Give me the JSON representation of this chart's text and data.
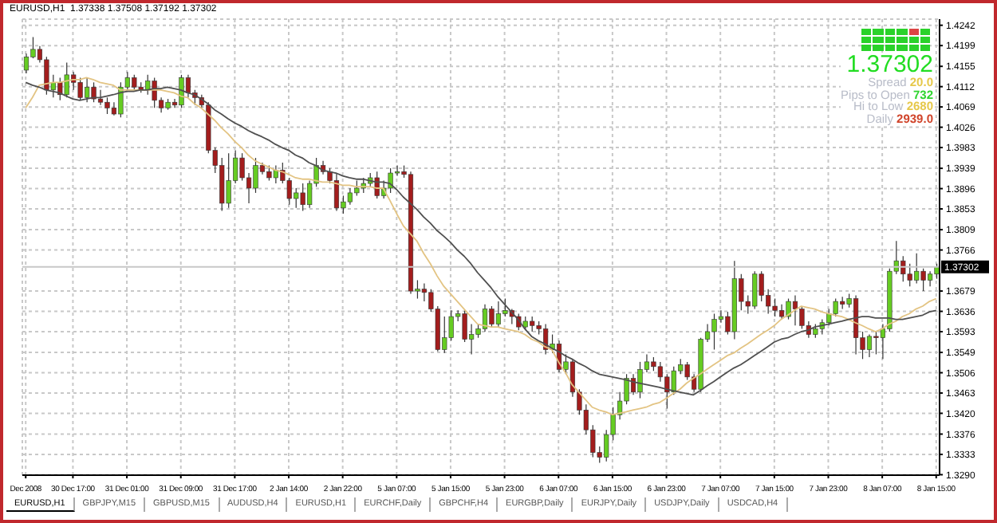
{
  "chart_data": {
    "type": "candlestick",
    "title": "EURUSD,H1  1.37338 1.37508 1.37192 1.37302",
    "categories": [
      "Dec 2008",
      null,
      null,
      null,
      null,
      null,
      null,
      "30 Dec 17:00",
      null,
      null,
      null,
      null,
      null,
      null,
      null,
      "31 Dec 01:00",
      null,
      null,
      null,
      null,
      null,
      null,
      null,
      "31 Dec 09:00",
      null,
      null,
      null,
      null,
      null,
      null,
      null,
      "31 Dec 17:00",
      null,
      null,
      null,
      null,
      null,
      null,
      null,
      "2 Jan 14:00",
      null,
      null,
      null,
      null,
      null,
      null,
      null,
      "2 Jan 22:00",
      null,
      null,
      null,
      null,
      null,
      null,
      null,
      "5 Jan 07:00",
      null,
      null,
      null,
      null,
      null,
      null,
      null,
      "5 Jan 15:00",
      null,
      null,
      null,
      null,
      null,
      null,
      null,
      "5 Jan 23:00",
      null,
      null,
      null,
      null,
      null,
      null,
      null,
      "6 Jan 07:00",
      null,
      null,
      null,
      null,
      null,
      null,
      null,
      "6 Jan 15:00",
      null,
      null,
      null,
      null,
      null,
      null,
      null,
      "6 Jan 23:00",
      null,
      null,
      null,
      null,
      null,
      null,
      null,
      "7 Jan 07:00",
      null,
      null,
      null,
      null,
      null,
      null,
      null,
      "7 Jan 15:00",
      null,
      null,
      null,
      null,
      null,
      null,
      null,
      "7 Jan 23:00",
      null,
      null,
      null,
      null,
      null,
      null,
      null,
      "8 Jan 07:00",
      null,
      null,
      null,
      null,
      null,
      null,
      null,
      "8 Jan 15:00"
    ],
    "ohlc": [
      [
        1.4147,
        1.4182,
        1.414,
        1.4175
      ],
      [
        1.4175,
        1.4217,
        1.4172,
        1.4191
      ],
      [
        1.4191,
        1.4198,
        1.4163,
        1.4169
      ],
      [
        1.4169,
        1.4175,
        1.4095,
        1.4105
      ],
      [
        1.4105,
        1.4137,
        1.4089,
        1.4121
      ],
      [
        1.4121,
        1.4131,
        1.4083,
        1.4095
      ],
      [
        1.4095,
        1.4163,
        1.4089,
        1.4137
      ],
      [
        1.4137,
        1.4143,
        1.4105,
        1.4121
      ],
      [
        1.4121,
        1.4131,
        1.4083,
        1.4089
      ],
      [
        1.4089,
        1.4131,
        1.4079,
        1.4111
      ],
      [
        1.4111,
        1.4121,
        1.4079,
        1.4086
      ],
      [
        1.4086,
        1.4105,
        1.4073,
        1.4079
      ],
      [
        1.4079,
        1.4089,
        1.4054,
        1.4067
      ],
      [
        1.4067,
        1.4079,
        1.4051,
        1.4054
      ],
      [
        1.4054,
        1.4121,
        1.4047,
        1.4111
      ],
      [
        1.4111,
        1.4143,
        1.4105,
        1.4131
      ],
      [
        1.4131,
        1.4137,
        1.4105,
        1.4111
      ],
      [
        1.4111,
        1.4121,
        1.4099,
        1.4105
      ],
      [
        1.4105,
        1.4137,
        1.4095,
        1.4124
      ],
      [
        1.4124,
        1.4131,
        1.4067,
        1.4083
      ],
      [
        1.4083,
        1.4089,
        1.4057,
        1.4067
      ],
      [
        1.4067,
        1.4086,
        1.4063,
        1.4079
      ],
      [
        1.4079,
        1.4086,
        1.4067,
        1.4073
      ],
      [
        1.4073,
        1.4137,
        1.4067,
        1.4131
      ],
      [
        1.4131,
        1.4137,
        1.4089,
        1.4099
      ],
      [
        1.4099,
        1.4105,
        1.4073,
        1.4089
      ],
      [
        1.4089,
        1.4095,
        1.4067,
        1.4073
      ],
      [
        1.4073,
        1.4079,
        1.3971,
        1.3977
      ],
      [
        1.3977,
        1.3983,
        1.3929,
        1.3945
      ],
      [
        1.3945,
        1.3961,
        1.3849,
        1.3865
      ],
      [
        1.3865,
        1.3971,
        1.3855,
        1.3913
      ],
      [
        1.3913,
        1.3977,
        1.3907,
        1.3961
      ],
      [
        1.3961,
        1.3971,
        1.3913,
        1.3919
      ],
      [
        1.3919,
        1.3929,
        1.3865,
        1.3897
      ],
      [
        1.3897,
        1.3961,
        1.3887,
        1.3945
      ],
      [
        1.3945,
        1.3951,
        1.3926,
        1.3932
      ],
      [
        1.3932,
        1.3945,
        1.3913,
        1.3919
      ],
      [
        1.3919,
        1.3945,
        1.3907,
        1.3935
      ],
      [
        1.3935,
        1.3951,
        1.3907,
        1.3913
      ],
      [
        1.3913,
        1.3919,
        1.3862,
        1.3875
      ],
      [
        1.3875,
        1.3897,
        1.3855,
        1.3887
      ],
      [
        1.3887,
        1.3907,
        1.3849,
        1.3862
      ],
      [
        1.3862,
        1.3913,
        1.3855,
        1.3907
      ],
      [
        1.3907,
        1.3961,
        1.39,
        1.3945
      ],
      [
        1.3945,
        1.3955,
        1.3926,
        1.3932
      ],
      [
        1.3932,
        1.3939,
        1.3907,
        1.3913
      ],
      [
        1.3913,
        1.3929,
        1.3849,
        1.3855
      ],
      [
        1.3855,
        1.3881,
        1.3843,
        1.3868
      ],
      [
        1.3868,
        1.3897,
        1.3862,
        1.3887
      ],
      [
        1.3887,
        1.3913,
        1.3881,
        1.3897
      ],
      [
        1.3897,
        1.3919,
        1.3887,
        1.3907
      ],
      [
        1.3907,
        1.3929,
        1.39,
        1.3919
      ],
      [
        1.3919,
        1.3932,
        1.3875,
        1.3881
      ],
      [
        1.3881,
        1.3913,
        1.3875,
        1.3897
      ],
      [
        1.3897,
        1.3939,
        1.3887,
        1.3929
      ],
      [
        1.3929,
        1.3945,
        1.3923,
        1.3932
      ],
      [
        1.3932,
        1.3945,
        1.3919,
        1.3926
      ],
      [
        1.3926,
        1.3932,
        1.3673,
        1.3679
      ],
      [
        1.3679,
        1.3702,
        1.3663,
        1.3683
      ],
      [
        1.3683,
        1.3695,
        1.3657,
        1.3676
      ],
      [
        1.3676,
        1.3683,
        1.3635,
        1.3641
      ],
      [
        1.3641,
        1.3647,
        1.3551,
        1.3555
      ],
      [
        1.3555,
        1.3625,
        1.3548,
        1.358
      ],
      [
        1.358,
        1.3638,
        1.3574,
        1.3625
      ],
      [
        1.3625,
        1.3638,
        1.3615,
        1.3631
      ],
      [
        1.3631,
        1.3638,
        1.3571,
        1.3577
      ],
      [
        1.3577,
        1.3609,
        1.3545,
        1.3587
      ],
      [
        1.3587,
        1.3609,
        1.358,
        1.3599
      ],
      [
        1.3599,
        1.3651,
        1.3593,
        1.3641
      ],
      [
        1.3641,
        1.3647,
        1.3603,
        1.3609
      ],
      [
        1.3609,
        1.3657,
        1.3603,
        1.3631
      ],
      [
        1.3631,
        1.3663,
        1.3625,
        1.3638
      ],
      [
        1.3638,
        1.3641,
        1.3609,
        1.3625
      ],
      [
        1.3625,
        1.3631,
        1.3596,
        1.3603
      ],
      [
        1.3603,
        1.3625,
        1.3596,
        1.3615
      ],
      [
        1.3615,
        1.3625,
        1.3593,
        1.3606
      ],
      [
        1.3606,
        1.3615,
        1.3587,
        1.3599
      ],
      [
        1.3599,
        1.3609,
        1.3545,
        1.3555
      ],
      [
        1.3555,
        1.3587,
        1.3548,
        1.3567
      ],
      [
        1.3567,
        1.3574,
        1.3507,
        1.3513
      ],
      [
        1.3513,
        1.3545,
        1.3503,
        1.3529
      ],
      [
        1.3529,
        1.3535,
        1.3455,
        1.3465
      ],
      [
        1.3465,
        1.3471,
        1.3417,
        1.3427
      ],
      [
        1.3427,
        1.3439,
        1.3375,
        1.3385
      ],
      [
        1.3385,
        1.3395,
        1.3327,
        1.3337
      ],
      [
        1.3337,
        1.335,
        1.3315,
        1.3327
      ],
      [
        1.3327,
        1.3385,
        1.3318,
        1.3375
      ],
      [
        1.3375,
        1.3433,
        1.3363,
        1.3417
      ],
      [
        1.3417,
        1.3465,
        1.3407,
        1.3446
      ],
      [
        1.3446,
        1.3503,
        1.3439,
        1.3494
      ],
      [
        1.3494,
        1.3503,
        1.3459,
        1.3465
      ],
      [
        1.3465,
        1.3529,
        1.3452,
        1.3513
      ],
      [
        1.3513,
        1.3545,
        1.3507,
        1.3529
      ],
      [
        1.3529,
        1.3539,
        1.351,
        1.3519
      ],
      [
        1.3519,
        1.3529,
        1.3487,
        1.3497
      ],
      [
        1.3497,
        1.3503,
        1.343,
        1.3465
      ],
      [
        1.3465,
        1.3519,
        1.3459,
        1.351
      ],
      [
        1.351,
        1.3535,
        1.3503,
        1.3523
      ],
      [
        1.3523,
        1.3529,
        1.3491,
        1.3497
      ],
      [
        1.3497,
        1.3503,
        1.3465,
        1.3471
      ],
      [
        1.3471,
        1.358,
        1.3465,
        1.3577
      ],
      [
        1.3577,
        1.3609,
        1.3571,
        1.3593
      ],
      [
        1.3593,
        1.3631,
        1.3555,
        1.3619
      ],
      [
        1.3619,
        1.3638,
        1.3612,
        1.3625
      ],
      [
        1.3625,
        1.3635,
        1.3587,
        1.3593
      ],
      [
        1.3593,
        1.3743,
        1.3577,
        1.3705
      ],
      [
        1.3705,
        1.3715,
        1.3638,
        1.3657
      ],
      [
        1.3657,
        1.367,
        1.3631,
        1.3647
      ],
      [
        1.3647,
        1.3721,
        1.3641,
        1.3715
      ],
      [
        1.3715,
        1.3721,
        1.3657,
        1.367
      ],
      [
        1.367,
        1.3683,
        1.3631,
        1.3647
      ],
      [
        1.3647,
        1.3663,
        1.3625,
        1.3638
      ],
      [
        1.3638,
        1.3651,
        1.3619,
        1.3625
      ],
      [
        1.3625,
        1.3663,
        1.3619,
        1.3657
      ],
      [
        1.3657,
        1.367,
        1.3606,
        1.3641
      ],
      [
        1.3641,
        1.3647,
        1.3599,
        1.3606
      ],
      [
        1.3606,
        1.3615,
        1.358,
        1.3587
      ],
      [
        1.3587,
        1.3609,
        1.358,
        1.3599
      ],
      [
        1.3599,
        1.3619,
        1.3587,
        1.3612
      ],
      [
        1.3612,
        1.3641,
        1.3606,
        1.3631
      ],
      [
        1.3631,
        1.3663,
        1.3625,
        1.3657
      ],
      [
        1.3657,
        1.3667,
        1.3641,
        1.3651
      ],
      [
        1.3651,
        1.3673,
        1.3644,
        1.3663
      ],
      [
        1.3663,
        1.367,
        1.3545,
        1.358
      ],
      [
        1.358,
        1.3593,
        1.3535,
        1.3555
      ],
      [
        1.3555,
        1.3587,
        1.3539,
        1.3583
      ],
      [
        1.3583,
        1.3593,
        1.3545,
        1.358
      ],
      [
        1.358,
        1.3609,
        1.3535,
        1.3599
      ],
      [
        1.3599,
        1.3727,
        1.3593,
        1.3721
      ],
      [
        1.3721,
        1.3785,
        1.3715,
        1.3743
      ],
      [
        1.3743,
        1.3753,
        1.3699,
        1.3715
      ],
      [
        1.3715,
        1.3737,
        1.3689,
        1.3702
      ],
      [
        1.3702,
        1.3759,
        1.3695,
        1.3721
      ],
      [
        1.3721,
        1.3727,
        1.3679,
        1.3702
      ],
      [
        1.3702,
        1.3721,
        1.3689,
        1.3715
      ],
      [
        1.3715,
        1.3737,
        1.3705,
        1.373
      ]
    ],
    "colors": [
      "#66cc22",
      "#66cc22",
      "#a31d1d",
      "#a31d1d",
      "#66cc22",
      "#a31d1d",
      "#66cc22",
      "#a31d1d",
      "#a31d1d",
      "#66cc22",
      "#a31d1d",
      "#a31d1d",
      "#a31d1d",
      "#a31d1d",
      "#66cc22",
      "#66cc22",
      "#a31d1d",
      "#a31d1d",
      "#66cc22",
      "#a31d1d",
      "#a31d1d",
      "#66cc22",
      "#a31d1d",
      "#66cc22",
      "#a31d1d",
      "#a31d1d",
      "#a31d1d",
      "#a31d1d",
      "#a31d1d",
      "#a31d1d",
      "#66cc22",
      "#66cc22",
      "#a31d1d",
      "#a31d1d",
      "#66cc22",
      "#a31d1d",
      "#a31d1d",
      "#66cc22",
      "#a31d1d",
      "#a31d1d",
      "#66cc22",
      "#a31d1d",
      "#66cc22",
      "#66cc22",
      "#a31d1d",
      "#a31d1d",
      "#a31d1d",
      "#66cc22",
      "#66cc22",
      "#66cc22",
      "#66cc22",
      "#66cc22",
      "#a31d1d",
      "#66cc22",
      "#66cc22",
      "#66cc22",
      "#a31d1d",
      "#a31d1d",
      "#66cc22",
      "#a31d1d",
      "#a31d1d",
      "#a31d1d",
      "#66cc22",
      "#66cc22",
      "#66cc22",
      "#a31d1d",
      "#66cc22",
      "#66cc22",
      "#66cc22",
      "#a31d1d",
      "#66cc22",
      "#66cc22",
      "#a31d1d",
      "#a31d1d",
      "#66cc22",
      "#a31d1d",
      "#a31d1d",
      "#a31d1d",
      "#66cc22",
      "#a31d1d",
      "#66cc22",
      "#a31d1d",
      "#a31d1d",
      "#a31d1d",
      "#a31d1d",
      "#a31d1d",
      "#66cc22",
      "#66cc22",
      "#66cc22",
      "#66cc22",
      "#a31d1d",
      "#66cc22",
      "#66cc22",
      "#a31d1d",
      "#a31d1d",
      "#a31d1d",
      "#66cc22",
      "#66cc22",
      "#a31d1d",
      "#a31d1d",
      "#66cc22",
      "#66cc22",
      "#66cc22",
      "#66cc22",
      "#a31d1d",
      "#66cc22",
      "#a31d1d",
      "#a31d1d",
      "#66cc22",
      "#a31d1d",
      "#a31d1d",
      "#a31d1d",
      "#a31d1d",
      "#66cc22",
      "#a31d1d",
      "#a31d1d",
      "#a31d1d",
      "#66cc22",
      "#66cc22",
      "#66cc22",
      "#66cc22",
      "#a31d1d",
      "#66cc22",
      "#a31d1d",
      "#a31d1d",
      "#66cc22",
      "#a31d1d",
      "#66cc22",
      "#66cc22",
      "#66cc22",
      "#a31d1d",
      "#a31d1d",
      "#66cc22",
      "#a31d1d",
      "#66cc22",
      "#66cc22"
    ],
    "series": [
      {
        "type": "line",
        "color": "#e3c483",
        "values": [
          1.4067,
          1.4089,
          1.4115,
          1.4118,
          1.4121,
          1.4121,
          1.4124,
          1.4127,
          1.4127,
          1.4131,
          1.4127,
          1.4121,
          1.4118,
          1.4115,
          1.4105,
          1.4105,
          1.4105,
          1.4105,
          1.4105,
          1.4105,
          1.4105,
          1.4102,
          1.4099,
          1.4092,
          1.4089,
          1.4076,
          1.4067,
          1.4054,
          1.4041,
          1.4025,
          1.4012,
          1.3996,
          1.3983,
          1.3967,
          1.3955,
          1.3948,
          1.3942,
          1.3935,
          1.3932,
          1.3926,
          1.3919,
          1.3916,
          1.3916,
          1.3913,
          1.391,
          1.391,
          1.3907,
          1.3903,
          1.3903,
          1.39,
          1.39,
          1.39,
          1.3897,
          1.3897,
          1.3871,
          1.3843,
          1.3817,
          1.3801,
          1.3785,
          1.3759,
          1.3737,
          1.3711,
          1.3689,
          1.3673,
          1.3657,
          1.3641,
          1.3625,
          1.3609,
          1.3606,
          1.3603,
          1.3603,
          1.3599,
          1.3596,
          1.3593,
          1.3587,
          1.3577,
          1.3571,
          1.3561,
          1.3555,
          1.3529,
          1.3507,
          1.3481,
          1.3465,
          1.3449,
          1.3433,
          1.3427,
          1.3423,
          1.3417,
          1.342,
          1.3423,
          1.3427,
          1.343,
          1.3433,
          1.3439,
          1.3443,
          1.3452,
          1.3462,
          1.3471,
          1.3484,
          1.3494,
          1.3503,
          1.3513,
          1.3523,
          1.3532,
          1.3542,
          1.3548,
          1.3558,
          1.3567,
          1.3577,
          1.3587,
          1.3596,
          1.3606,
          1.3619,
          1.3628,
          1.3638,
          1.3647,
          1.3644,
          1.3641,
          1.3635,
          1.3631,
          1.3628,
          1.3625,
          1.3619,
          1.3612,
          1.3606,
          1.3599,
          1.3593,
          1.3599,
          1.3609,
          1.3615,
          1.3625,
          1.3631,
          1.3641,
          1.3647,
          1.3657,
          1.3663
        ]
      },
      {
        "type": "line",
        "color": "#505050",
        "values": [
          1.4121,
          1.4115,
          1.4111,
          1.4105,
          1.4102,
          1.4099,
          1.4092,
          1.4086,
          1.4083,
          1.4086,
          1.4089,
          1.4089,
          1.4092,
          1.4095,
          1.4099,
          1.4102,
          1.4102,
          1.4105,
          1.4105,
          1.4108,
          1.4108,
          1.4111,
          1.4108,
          1.4105,
          1.4099,
          1.4095,
          1.4086,
          1.4076,
          1.4063,
          1.4054,
          1.4044,
          1.4035,
          1.4028,
          1.4019,
          1.4012,
          1.4006,
          1.3999,
          1.399,
          1.3983,
          1.3977,
          1.3967,
          1.3961,
          1.3951,
          1.3945,
          1.3935,
          1.3932,
          1.3929,
          1.3923,
          1.3919,
          1.3916,
          1.3916,
          1.3913,
          1.391,
          1.391,
          1.3907,
          1.3894,
          1.3878,
          1.3865,
          1.3852,
          1.3836,
          1.3823,
          1.3807,
          1.3795,
          1.3782,
          1.3766,
          1.3753,
          1.3737,
          1.3718,
          1.3702,
          1.3686,
          1.3667,
          1.3651,
          1.3635,
          1.3619,
          1.3599,
          1.3583,
          1.3574,
          1.3567,
          1.3558,
          1.3551,
          1.3542,
          1.3535,
          1.3526,
          1.3519,
          1.351,
          1.3503,
          1.35,
          1.3497,
          1.3494,
          1.3491,
          1.3487,
          1.3484,
          1.3481,
          1.3478,
          1.3475,
          1.3471,
          1.3468,
          1.3465,
          1.3462,
          1.3459,
          1.3468,
          1.3478,
          1.3487,
          1.3497,
          1.3507,
          1.3516,
          1.3523,
          1.3532,
          1.3542,
          1.3551,
          1.3561,
          1.3571,
          1.3577,
          1.358,
          1.3587,
          1.3593,
          1.3596,
          1.3603,
          1.3606,
          1.3609,
          1.3612,
          1.3615,
          1.3619,
          1.3622,
          1.3625,
          1.3625,
          1.3622,
          1.3622,
          1.3622,
          1.3619,
          1.3619,
          1.3622,
          1.3625,
          1.3628,
          1.3635,
          1.3638
        ]
      }
    ],
    "ylim": [
      1.3289,
      1.4255
    ],
    "yticks": [
      1.4242,
      1.4199,
      1.4155,
      1.4112,
      1.4069,
      1.4026,
      1.3983,
      1.3939,
      1.3896,
      1.3853,
      1.3809,
      1.3766,
      1.3679,
      1.3636,
      1.3593,
      1.3549,
      1.3506,
      1.3463,
      {
        "value": 1.342,
        "label": "1.3420"
      },
      1.3376,
      1.3333,
      {
        "value": 1.329,
        "label": "1.3290"
      }
    ],
    "grid": true,
    "ref_lines": [
      {
        "axis": "y",
        "value": 1.37302,
        "label": "1.37302",
        "color": "#c8c8c8"
      }
    ],
    "annotations": [
      "1.37302",
      "Spread 20.0",
      "Pips to Open 732",
      "Hi to Low 2680",
      "Daily 2939.0",
      "EURUSD,H1",
      "GBPJPY,M15",
      "GBPUSD,M15",
      "AUDUSD,H4",
      "EURUSD,H1",
      "EURCHF,Daily",
      "GBPCHF,H4",
      "EURGBP,Daily",
      "EURJPY,Daily",
      "USDJPY,Daily",
      "USDCAD,H4"
    ]
  }
}
